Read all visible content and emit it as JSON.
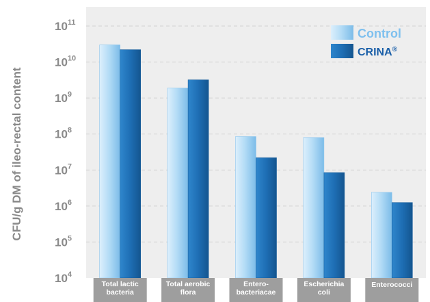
{
  "chart_data": {
    "type": "bar",
    "scale": "log10",
    "ylabel": "CFU/g DM of ileo-rectal content",
    "ylim": [
      10000,
      100000000000
    ],
    "y_ticks": [
      {
        "base": "10",
        "exp": "4",
        "value": 10000
      },
      {
        "base": "10",
        "exp": "5",
        "value": 100000
      },
      {
        "base": "10",
        "exp": "6",
        "value": 1000000
      },
      {
        "base": "10",
        "exp": "7",
        "value": 10000000
      },
      {
        "base": "10",
        "exp": "8",
        "value": 100000000
      },
      {
        "base": "10",
        "exp": "9",
        "value": 1000000000
      },
      {
        "base": "10",
        "exp": "10",
        "value": 10000000000
      },
      {
        "base": "10",
        "exp": "11",
        "value": 100000000000
      }
    ],
    "categories": [
      [
        "Total lactic",
        "bacteria"
      ],
      [
        "Total aerobic",
        "flora"
      ],
      [
        "Entero-",
        "bacteriacae"
      ],
      [
        "Escherichia",
        "coli"
      ],
      [
        "Enterococci"
      ]
    ],
    "series": [
      {
        "name": "Control",
        "values": [
          30000000000,
          1900000000,
          85000000,
          80000000,
          2400000
        ],
        "color": "#a9d3f2"
      },
      {
        "name": "CRINA",
        "name_mark": "®",
        "values": [
          22000000000,
          3200000000,
          22000000,
          8500000,
          1250000
        ],
        "color": "#1f6fb5"
      }
    ],
    "legend": {
      "position": "top-right"
    },
    "grid": "horizontal-dashed",
    "colors": {
      "background": "#eeeeee",
      "grid": "#d3d3d3",
      "category_band": "#9e9e9e",
      "axis_text": "#8a8a8a",
      "control_legend_text": "#7fc0ee",
      "crina_legend_text": "#1a5fa8"
    }
  }
}
